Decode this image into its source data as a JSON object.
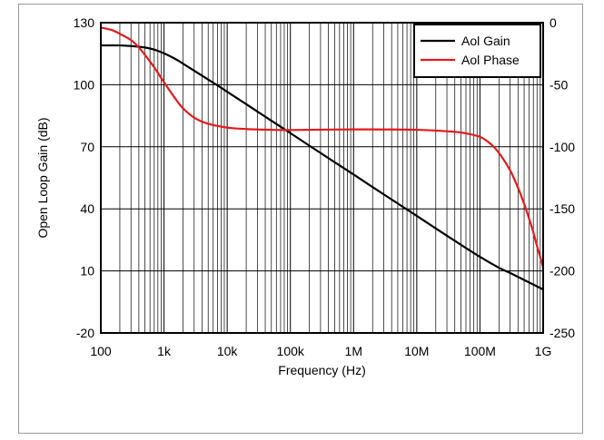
{
  "chart_data": {
    "type": "line",
    "xlabel": "Frequency (Hz)",
    "ylabel": "Open Loop Gain (dB)",
    "y2label": "",
    "xscale": "log",
    "xlim": [
      100,
      1000000000
    ],
    "ylim": [
      -20,
      130
    ],
    "y2lim": [
      -250,
      0
    ],
    "grid": true,
    "legend": "top-right",
    "x_ticks": [
      {
        "value": 100,
        "label": "100"
      },
      {
        "value": 1000,
        "label": "1k"
      },
      {
        "value": 10000,
        "label": "10k"
      },
      {
        "value": 100000,
        "label": "100k"
      },
      {
        "value": 1000000,
        "label": "1M"
      },
      {
        "value": 10000000,
        "label": "10M"
      },
      {
        "value": 100000000,
        "label": "100M"
      },
      {
        "value": 1000000000,
        "label": "1G"
      }
    ],
    "y_ticks": [
      {
        "value": -20,
        "label": "-20"
      },
      {
        "value": 10,
        "label": "10"
      },
      {
        "value": 40,
        "label": "40"
      },
      {
        "value": 70,
        "label": "70"
      },
      {
        "value": 100,
        "label": "100"
      },
      {
        "value": 130,
        "label": "130"
      }
    ],
    "y2_ticks": [
      {
        "value": -250,
        "label": "-250"
      },
      {
        "value": -200,
        "label": "-200"
      },
      {
        "value": -150,
        "label": "-150"
      },
      {
        "value": -100,
        "label": "-100"
      },
      {
        "value": -50,
        "label": "-50"
      },
      {
        "value": 0,
        "label": "0"
      }
    ],
    "series": [
      {
        "name": "Aol Gain",
        "axis": "left",
        "color": "#000000",
        "x": [
          100,
          200,
          300,
          500,
          700,
          1000,
          1500,
          2000,
          3000,
          5000,
          7000,
          10000,
          20000,
          50000,
          100000,
          300000,
          1000000,
          3000000,
          10000000,
          30000000,
          100000000,
          200000000,
          300000000,
          500000000,
          700000000,
          1000000000
        ],
        "y": [
          119,
          119,
          118.7,
          118,
          117,
          115.2,
          112.5,
          110.2,
          106.8,
          102.5,
          99.7,
          96.6,
          90.6,
          82.6,
          76.6,
          67,
          56.6,
          47,
          36.6,
          27,
          16.8,
          11.5,
          9,
          5.6,
          3.4,
          1
        ]
      },
      {
        "name": "Aol Phase",
        "axis": "right",
        "color": "#e31a1c",
        "x": [
          100,
          150,
          200,
          300,
          400,
          500,
          700,
          1000,
          1500,
          2000,
          3000,
          5000,
          10000,
          20000,
          50000,
          100000,
          1000000,
          10000000,
          30000000,
          50000000,
          100000000,
          150000000,
          200000000,
          300000000,
          400000000,
          500000000,
          600000000,
          700000000,
          800000000,
          1000000000
        ],
        "y": [
          -4,
          -6,
          -9,
          -14,
          -20,
          -26,
          -36,
          -48,
          -61,
          -69,
          -76.5,
          -81.5,
          -84.5,
          -85.7,
          -86.3,
          -86.5,
          -86,
          -86.3,
          -87.5,
          -88.5,
          -92,
          -98,
          -105,
          -119,
          -133,
          -146,
          -158,
          -169,
          -180,
          -197
        ]
      }
    ]
  }
}
